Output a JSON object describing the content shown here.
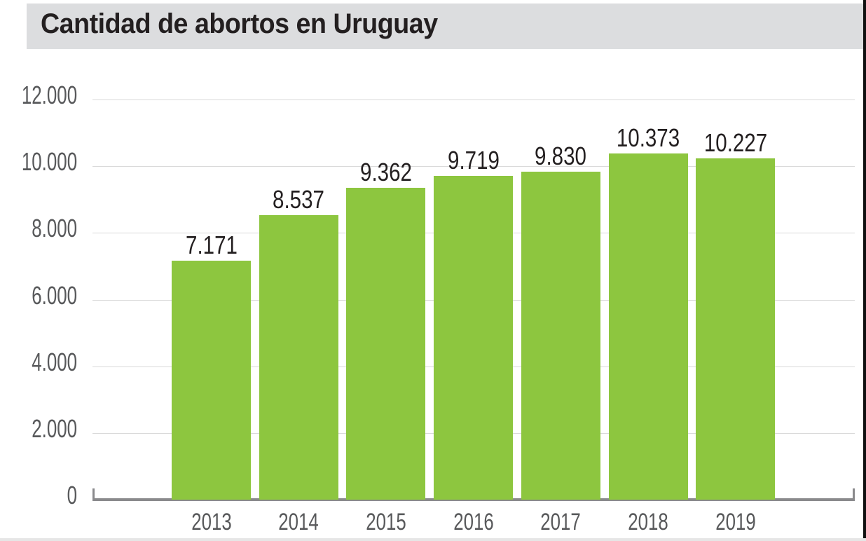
{
  "chart_data": {
    "type": "bar",
    "title": "Cantidad de abortos en Uruguay",
    "categories": [
      "2013",
      "2014",
      "2015",
      "2016",
      "2017",
      "2018",
      "2019"
    ],
    "values": [
      7171,
      8537,
      9362,
      9719,
      9830,
      10373,
      10227
    ],
    "value_labels": [
      "7.171",
      "8.537",
      "9.362",
      "9.719",
      "9.830",
      "10.373",
      "10.227"
    ],
    "xlabel": "",
    "ylabel": "",
    "ylim": [
      0,
      12000
    ],
    "yticks": [
      0,
      2000,
      4000,
      6000,
      8000,
      10000,
      12000
    ],
    "ytick_labels": [
      "0",
      "2.000",
      "4.000",
      "6.000",
      "8.000",
      "10.000",
      "12.000"
    ],
    "grid": true,
    "legend": "none",
    "bar_color": "#8dc63f",
    "title_background": "#dcdddf"
  }
}
